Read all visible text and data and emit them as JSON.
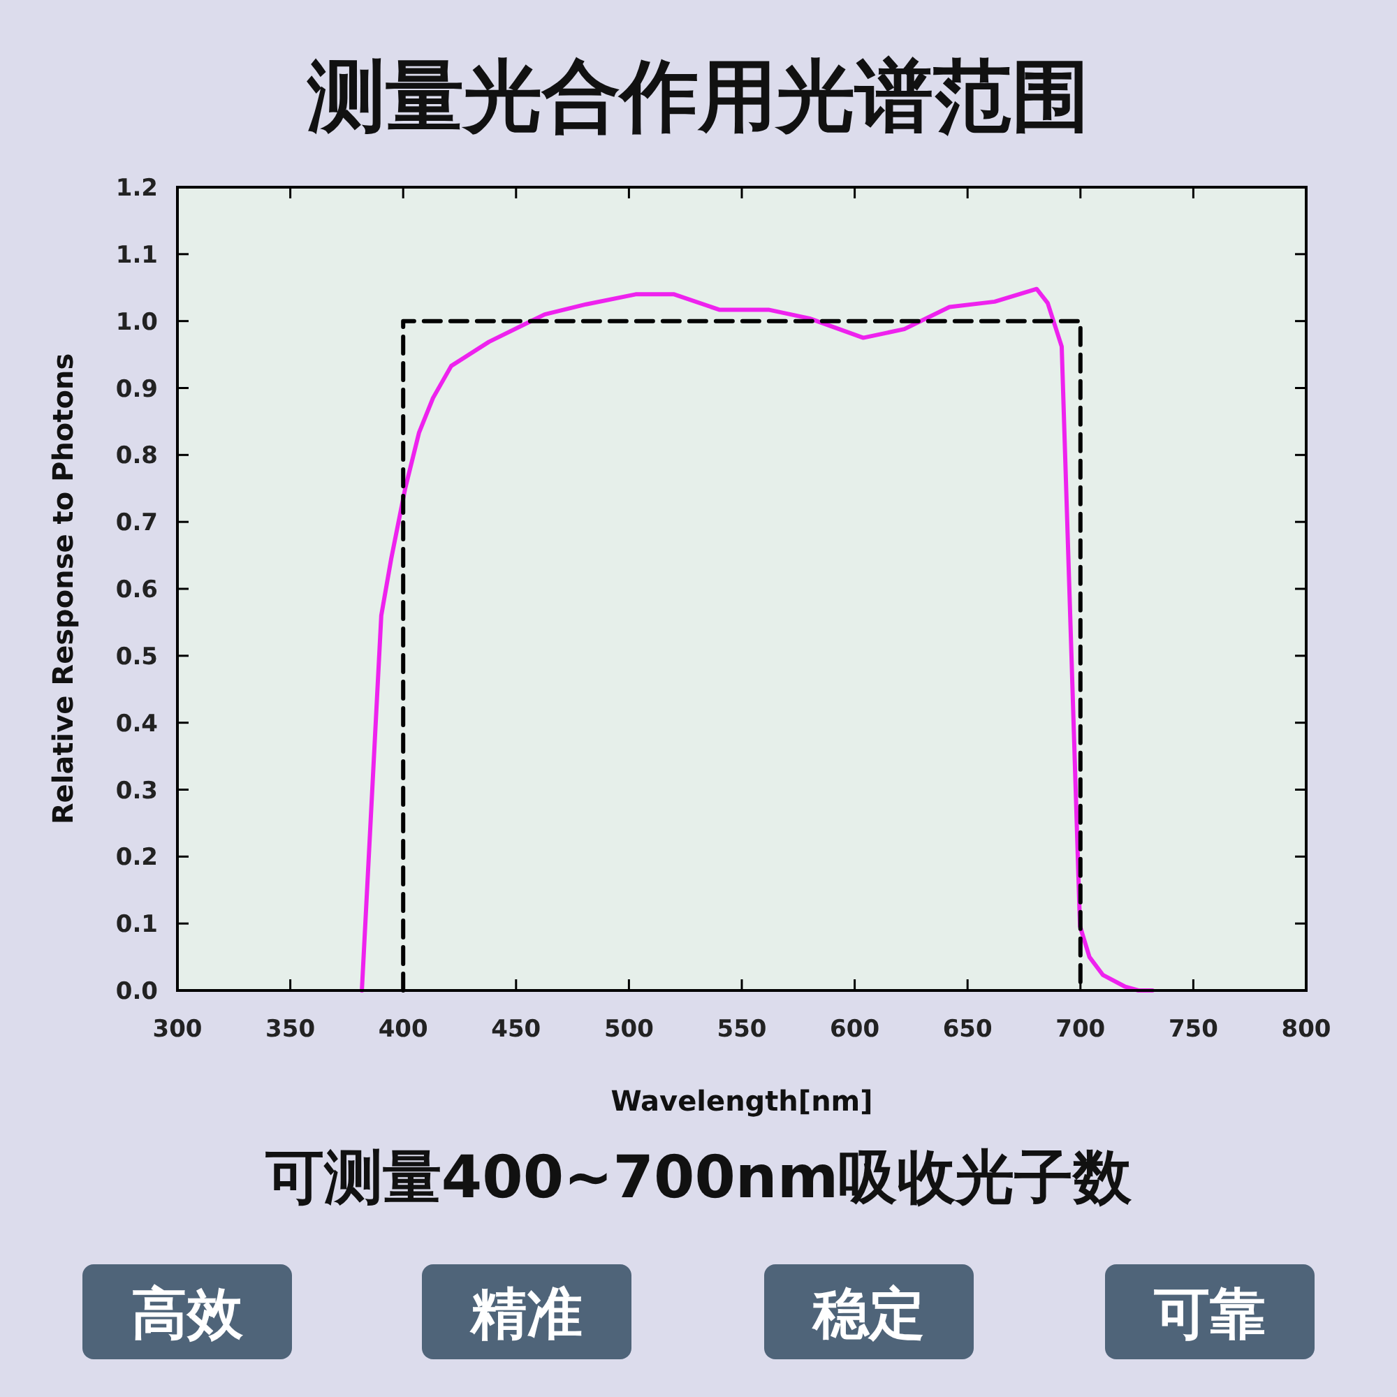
{
  "chart_data": {
    "type": "line",
    "title": "测量光合作用光谱范围",
    "subtitle": "可测量400~700nm吸收光子数",
    "xlabel": "Wavelength[nm]",
    "ylabel": "Relative Response to Photons",
    "series": [
      {
        "color": "#ee22ee",
        "line_style": "solid",
        "x": [
          381.7,
          390.3,
          394.7,
          400.9,
          407,
          413.2,
          421.3,
          438,
          462.7,
          481,
          503,
          520,
          540,
          561.8,
          580,
          603.8,
          622,
          642,
          662,
          680.6,
          685.5,
          691.7,
          699.8,
          704,
          710,
          719.6,
          725.7,
          731.9
        ],
        "values": [
          0,
          0.56,
          0.645,
          0.75,
          0.833,
          0.885,
          0.933,
          0.969,
          1.01,
          1.025,
          1.04,
          1.04,
          1.017,
          1.017,
          1.004,
          0.975,
          0.988,
          1.021,
          1.029,
          1.048,
          1.027,
          0.962,
          0.096,
          0.05,
          0.023,
          0.006,
          0,
          0
        ]
      },
      {
        "color": "#000000",
        "line_style": "dashed",
        "x": [
          400,
          400,
          700,
          700
        ],
        "values": [
          0,
          1,
          1,
          0
        ]
      }
    ],
    "xlim": [
      300,
      800
    ],
    "ylim": [
      0,
      1.2
    ],
    "xticks": [
      300,
      350,
      400,
      450,
      500,
      550,
      600,
      650,
      700,
      750,
      800
    ],
    "yticks": [
      {
        "value": 0,
        "label": "0.0"
      },
      0.1,
      0.2,
      0.3,
      0.4,
      0.5,
      0.6,
      0.7,
      0.8,
      0.9,
      {
        "value": 1,
        "label": "1.0"
      },
      1.1,
      1.2
    ],
    "annotations": [
      "高效",
      "精准",
      "稳定",
      "可靠"
    ]
  }
}
